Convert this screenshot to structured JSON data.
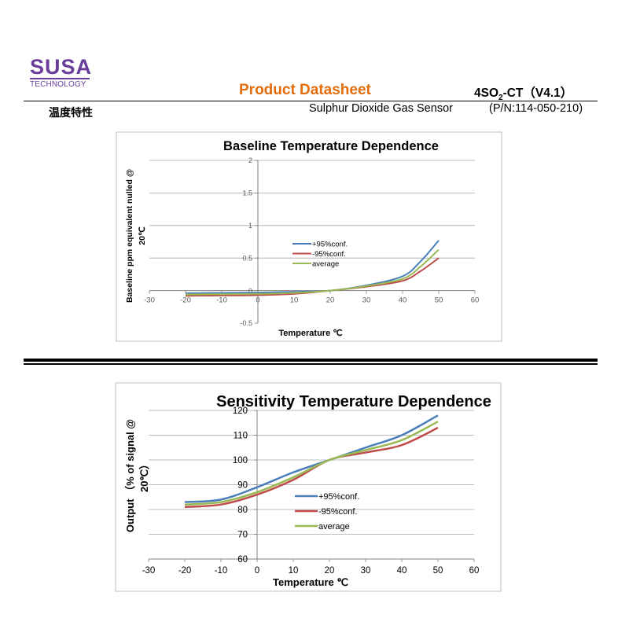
{
  "header": {
    "logo_main": "SUSA",
    "logo_sub": "TECHNOLOGY",
    "doc_title": "Product Datasheet",
    "model_prefix": "4SO",
    "model_sub": "2",
    "model_suffix": "-CT（V4.1）",
    "section_title": "温度特性",
    "subtitle": "Sulphur Dioxide Gas Sensor",
    "part_number": "(P/N:114-050-210)"
  },
  "colors": {
    "brand": "#6a3d9a",
    "title": "#e46c0a",
    "upper": "#4a7ebb",
    "lower": "#be4b48",
    "average": "#98b954"
  },
  "chart_data": [
    {
      "type": "line",
      "title": "Baseline Temperature Dependence",
      "xlabel": "Temperature ℃",
      "ylabel_line1": "Baseline ppm equivalent nulled @",
      "ylabel_line2": "20℃",
      "xlim": [
        -30,
        60
      ],
      "ylim": [
        -0.5,
        2
      ],
      "xticks": [
        "-30",
        "-20",
        "-10",
        "0",
        "10",
        "20",
        "30",
        "40",
        "50",
        "60"
      ],
      "yticks": [
        "-0.5",
        "0",
        "0.5",
        "1",
        "1.5",
        "2"
      ],
      "x": [
        -20,
        -10,
        0,
        10,
        20,
        30,
        40,
        45,
        50
      ],
      "legend_position": "center-right",
      "series": [
        {
          "name": "+95%conf.",
          "values": [
            -0.04,
            -0.035,
            -0.03,
            -0.02,
            0.0,
            0.08,
            0.22,
            0.45,
            0.77
          ]
        },
        {
          "name": "-95%conf.",
          "values": [
            -0.08,
            -0.075,
            -0.07,
            -0.05,
            0.0,
            0.06,
            0.15,
            0.3,
            0.5
          ]
        },
        {
          "name": "average",
          "values": [
            -0.06,
            -0.055,
            -0.05,
            -0.035,
            0.0,
            0.07,
            0.18,
            0.37,
            0.63
          ]
        }
      ]
    },
    {
      "type": "line",
      "title": "Sensitivity Temperature Dependence",
      "xlabel": "Temperature ℃",
      "ylabel_line1": "Output （% of signal @",
      "ylabel_line2": "20℃）",
      "xlim": [
        -30,
        60
      ],
      "ylim": [
        60,
        120
      ],
      "xticks": [
        "-30",
        "-20",
        "-10",
        "0",
        "10",
        "20",
        "30",
        "40",
        "50",
        "60"
      ],
      "yticks": [
        "60",
        "70",
        "80",
        "90",
        "100",
        "110",
        "120"
      ],
      "x": [
        -20,
        -10,
        0,
        10,
        20,
        30,
        40,
        50
      ],
      "legend_position": "center-right",
      "series": [
        {
          "name": "+95%conf.",
          "values": [
            83,
            84,
            89,
            95,
            100,
            105,
            110,
            118
          ]
        },
        {
          "name": "-95%conf.",
          "values": [
            81,
            82,
            86,
            92,
            100,
            103,
            106,
            113
          ]
        },
        {
          "name": "average",
          "values": [
            82,
            83,
            87,
            93,
            100,
            104,
            108,
            115.5
          ]
        }
      ]
    }
  ]
}
